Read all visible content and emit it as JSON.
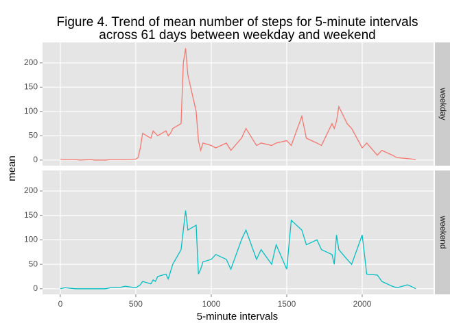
{
  "chart_data": {
    "type": "line",
    "title": [
      "Figure 4. Trend of mean number of steps for 5-minute intervals",
      "across 61 days between weekday and weekend"
    ],
    "x_label": "5-minute intervals",
    "y_label": "mean",
    "facet": true,
    "grid": true,
    "x": [
      0,
      30,
      100,
      130,
      200,
      230,
      300,
      330,
      400,
      430,
      500,
      515,
      530,
      545,
      600,
      615,
      630,
      645,
      700,
      715,
      730,
      745,
      800,
      815,
      830,
      845,
      900,
      915,
      930,
      945,
      1000,
      1030,
      1100,
      1130,
      1200,
      1230,
      1300,
      1330,
      1400,
      1430,
      1500,
      1530,
      1600,
      1630,
      1700,
      1730,
      1800,
      1815,
      1830,
      1845,
      1900,
      1930,
      2000,
      2030,
      2100,
      2130,
      2200,
      2230,
      2300,
      2330,
      2355
    ],
    "series": [
      {
        "name": "weekday",
        "color": "#F8766D",
        "values": [
          2,
          1,
          1,
          0,
          1,
          0,
          0,
          1,
          1,
          1,
          2,
          5,
          25,
          55,
          45,
          60,
          55,
          50,
          60,
          50,
          55,
          65,
          75,
          200,
          230,
          175,
          100,
          40,
          20,
          35,
          30,
          25,
          35,
          20,
          45,
          65,
          30,
          35,
          30,
          35,
          40,
          30,
          90,
          45,
          35,
          30,
          75,
          65,
          80,
          110,
          75,
          65,
          25,
          35,
          10,
          20,
          10,
          5,
          3,
          2,
          1
        ]
      },
      {
        "name": "weekend",
        "color": "#00BFC4",
        "values": [
          0,
          2,
          0,
          0,
          0,
          0,
          0,
          2,
          3,
          5,
          2,
          5,
          8,
          15,
          10,
          18,
          15,
          25,
          30,
          20,
          35,
          50,
          80,
          120,
          160,
          120,
          130,
          30,
          40,
          55,
          60,
          70,
          60,
          40,
          100,
          120,
          60,
          80,
          50,
          90,
          40,
          140,
          120,
          90,
          100,
          80,
          70,
          50,
          110,
          80,
          60,
          50,
          110,
          30,
          28,
          15,
          5,
          2,
          8,
          4,
          0
        ]
      }
    ],
    "xlim": [
      -117.75,
      2472.75
    ],
    "xticks": [
      0,
      500,
      1000,
      1500,
      2000
    ],
    "ylim": [
      -11.5,
      242
    ],
    "yticks": [
      0,
      50,
      100,
      150,
      200
    ]
  }
}
